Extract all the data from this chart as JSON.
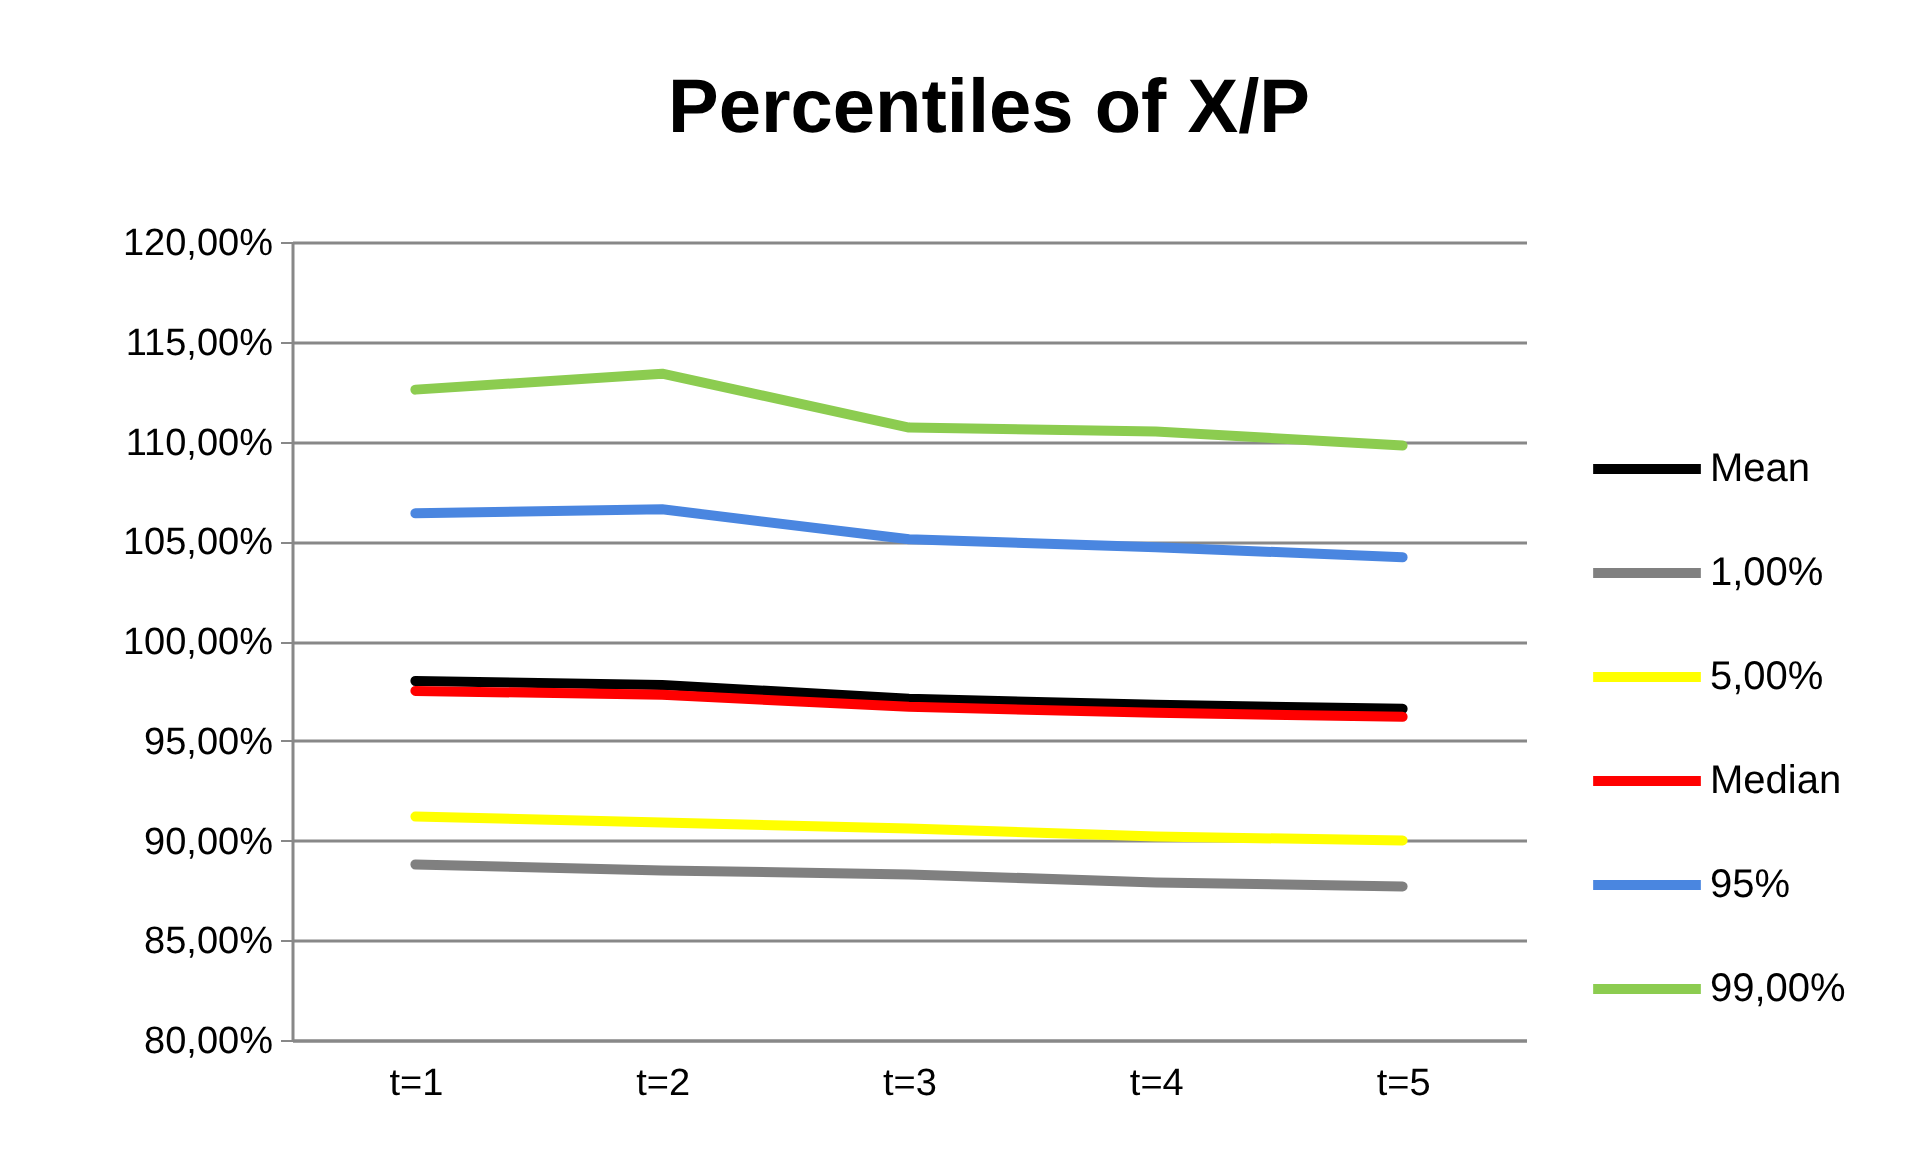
{
  "chart_data": {
    "type": "line",
    "title": "Percentiles of X/P",
    "categories": [
      "t=1",
      "t=2",
      "t=3",
      "t=4",
      "t=5"
    ],
    "series": [
      {
        "name": "Mean",
        "color": "#000000",
        "values": [
          98.0,
          97.8,
          97.1,
          96.8,
          96.6
        ]
      },
      {
        "name": "1,00%",
        "color": "#808080",
        "values": [
          88.8,
          88.5,
          88.3,
          87.9,
          87.7
        ]
      },
      {
        "name": "5,00%",
        "color": "#ffff00",
        "values": [
          91.2,
          90.9,
          90.6,
          90.2,
          90.0
        ]
      },
      {
        "name": "Median",
        "color": "#ff0000",
        "values": [
          97.5,
          97.3,
          96.7,
          96.4,
          96.2
        ]
      },
      {
        "name": "95%",
        "color": "#4a86e0",
        "values": [
          106.4,
          106.6,
          105.1,
          104.7,
          104.2
        ]
      },
      {
        "name": "99,00%",
        "color": "#8ccc50",
        "values": [
          112.6,
          113.4,
          110.7,
          110.5,
          109.8
        ]
      }
    ],
    "ylim": [
      80,
      120
    ],
    "yticks": [
      {
        "value": 80,
        "label": "80,00%"
      },
      {
        "value": 85,
        "label": "85,00%"
      },
      {
        "value": 90,
        "label": "90,00%"
      },
      {
        "value": 95,
        "label": "95,00%"
      },
      {
        "value": 100,
        "label": "100,00%"
      },
      {
        "value": 105,
        "label": "105,00%"
      },
      {
        "value": 110,
        "label": "110,00%"
      },
      {
        "value": 115,
        "label": "115,00%"
      },
      {
        "value": 120,
        "label": "120,00%"
      }
    ],
    "grid": "y",
    "legend": "right",
    "line_style": "solid",
    "marker": "none"
  }
}
